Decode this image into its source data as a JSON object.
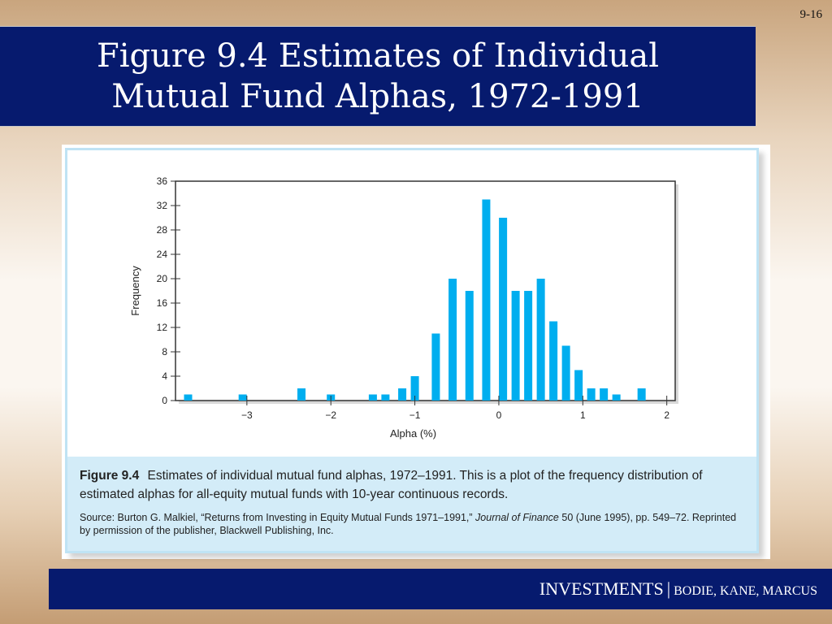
{
  "slide_number": "9-16",
  "title_lines": [
    "Figure 9.4 Estimates of Individual",
    "Mutual Fund Alphas, 1972-1991"
  ],
  "chart_data": {
    "type": "bar",
    "x": [
      -3.7,
      -3.05,
      -2.7,
      -2.35,
      -2.0,
      -1.7,
      -1.5,
      -1.35,
      -1.15,
      -1.0,
      -0.75,
      -0.55,
      -0.35,
      -0.15,
      0.05,
      0.2,
      0.35,
      0.5,
      0.65,
      0.8,
      0.95,
      1.1,
      1.25,
      1.4,
      1.55,
      1.7,
      1.95
    ],
    "values": [
      1,
      1,
      0,
      2,
      1,
      0,
      1,
      1,
      2,
      4,
      11,
      20,
      18,
      33,
      30,
      18,
      18,
      20,
      13,
      9,
      5,
      2,
      2,
      1,
      0,
      2,
      0
    ],
    "xlabel": "Alpha (%)",
    "ylabel": "Frequency",
    "ylim": [
      0,
      36
    ],
    "yticks": [
      0,
      4,
      8,
      12,
      16,
      20,
      24,
      28,
      32,
      36
    ],
    "xticks": [
      -3,
      -2,
      -1,
      0,
      1,
      2
    ],
    "xtick_labels": [
      "−3",
      "−2",
      "−1",
      "0",
      "1",
      "2"
    ],
    "bar_color": "#00aeef"
  },
  "caption": {
    "figure_label": "Figure 9.4",
    "text": "Estimates of individual mutual fund alphas, 1972–1991. This is a plot of the frequency distribution of estimated alphas for all-equity mutual funds with 10-year continuous records.",
    "source_prefix": "Source: Burton G. Malkiel, “Returns from Investing in Equity Mutual Funds 1971–1991,” ",
    "source_journal": "Journal of Finance",
    "source_suffix": " 50 (June 1995), pp. 549–72. Reprinted by permission of the publisher, Blackwell Publishing, Inc."
  },
  "footer": {
    "main": "INVESTMENTS",
    "separator": "|",
    "authors": "BODIE, KANE, MARCUS"
  },
  "colors": {
    "title_bar": "#061a6e",
    "caption_bg": "#d3ecf8",
    "frame_border": "#bfe3f4"
  }
}
